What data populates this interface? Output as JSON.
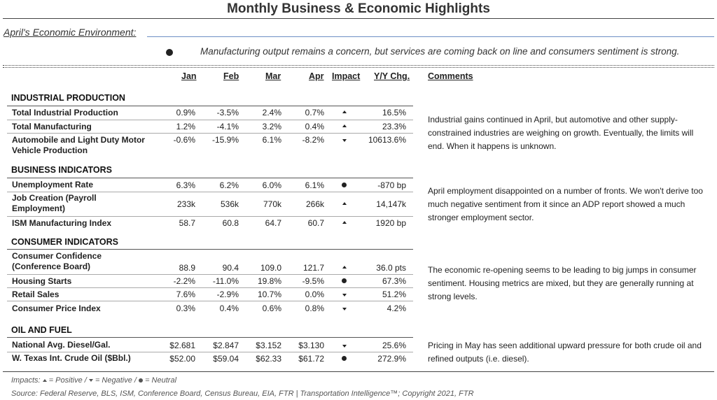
{
  "title": "Monthly Business & Economic Highlights",
  "subhead": "April's Economic Environment:",
  "summary": "Manufacturing output remains a concern, but services are coming back on line and consumers sentiment is strong.",
  "columns": {
    "jan": "Jan",
    "feb": "Feb",
    "mar": "Mar",
    "apr": "Apr",
    "impact": "Impact",
    "yoy": "Y/Y Chg.",
    "comments": "Comments"
  },
  "sections": {
    "industrial": {
      "title": "INDUSTRIAL PRODUCTION",
      "comment": "Industrial gains continued in April, but automotive and other supply-constrained industries are weighing on growth. Eventually, the limits will end. When it happens is unknown.",
      "rows": [
        {
          "label": "Total Industrial Production",
          "jan": "0.9%",
          "feb": "-3.5%",
          "mar": "2.4%",
          "apr": "0.7%",
          "impact": "positive",
          "yoy": "16.5%"
        },
        {
          "label": "Total Manufacturing",
          "jan": "1.2%",
          "feb": "-4.1%",
          "mar": "3.2%",
          "apr": "0.4%",
          "impact": "positive",
          "yoy": "23.3%"
        },
        {
          "label": "Automobile and Light Duty Motor Vehicle Production",
          "jan": "-0.6%",
          "feb": "-15.9%",
          "mar": "6.1%",
          "apr": "-8.2%",
          "impact": "negative",
          "yoy": "10613.6%"
        }
      ]
    },
    "business": {
      "title": "BUSINESS INDICATORS",
      "comment": "April employment disappointed on a number of fronts. We won't derive too much negative sentiment from it since an ADP report showed a much stronger employment sector.",
      "rows": [
        {
          "label": "Unemployment Rate",
          "jan": "6.3%",
          "feb": "6.2%",
          "mar": "6.0%",
          "apr": "6.1%",
          "impact": "neutral",
          "yoy": "-870 bp"
        },
        {
          "label": "Job Creation (Payroll Employment)",
          "jan": "233k",
          "feb": "536k",
          "mar": "770k",
          "apr": "266k",
          "impact": "positive",
          "yoy": "14,147k"
        },
        {
          "label": "ISM Manufacturing Index",
          "jan": "58.7",
          "feb": "60.8",
          "mar": "64.7",
          "apr": "60.7",
          "impact": "positive",
          "yoy": "1920 bp"
        }
      ]
    },
    "consumer": {
      "title": "CONSUMER INDICATORS",
      "comment": "The economic re-opening seems to be leading to big jumps in consumer sentiment. Housing metrics are mixed, but they are generally running at strong levels.",
      "rows": [
        {
          "label": "Consumer Confidence (Conference Board)",
          "jan": "88.9",
          "feb": "90.4",
          "mar": "109.0",
          "apr": "121.7",
          "impact": "positive",
          "yoy": "36.0 pts"
        },
        {
          "label": "Housing Starts",
          "jan": "-2.2%",
          "feb": "-11.0%",
          "mar": "19.8%",
          "apr": "-9.5%",
          "impact": "neutral",
          "yoy": "67.3%"
        },
        {
          "label": "Retail Sales",
          "jan": "7.6%",
          "feb": "-2.9%",
          "mar": "10.7%",
          "apr": "0.0%",
          "impact": "negative",
          "yoy": "51.2%"
        },
        {
          "label": "Consumer Price Index",
          "jan": "0.3%",
          "feb": "0.4%",
          "mar": "0.6%",
          "apr": "0.8%",
          "impact": "negative",
          "yoy": "4.2%"
        }
      ]
    },
    "oil": {
      "title": "OIL AND FUEL",
      "comment": "Pricing in May has seen additional upward pressure for both crude oil and refined outputs (i.e. diesel).",
      "rows": [
        {
          "label": "National Avg. Diesel/Gal.",
          "jan": "$2.681",
          "feb": "$2.847",
          "mar": "$3.152",
          "apr": "$3.130",
          "impact": "negative",
          "yoy": "25.6%"
        },
        {
          "label": "W. Texas Int. Crude Oil ($Bbl.)",
          "jan": "$52.00",
          "feb": "$59.04",
          "mar": "$62.33",
          "apr": "$61.72",
          "impact": "neutral",
          "yoy": "272.9%"
        }
      ]
    }
  },
  "legend": {
    "prefix": "Impacts:",
    "positive": "= Positive /",
    "negative": "= Negative /",
    "neutral": "= Neutral"
  },
  "source": "Source: Federal Reserve, BLS, ISM, Conference Board, Census Bureau, EIA, FTR | Transportation Intelligence™; Copyright 2021, FTR"
}
